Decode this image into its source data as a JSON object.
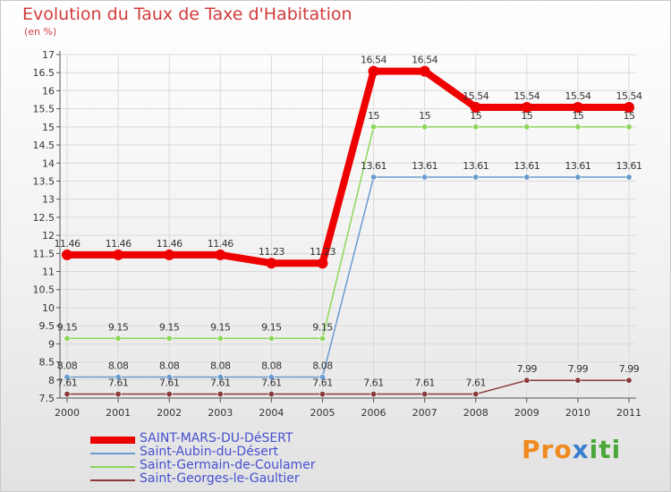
{
  "title": "Evolution du Taux de Taxe d'Habitation",
  "unit": "(en %)",
  "brand": {
    "part1": "Pro",
    "part2": "x",
    "part3": "iti"
  },
  "colors": {
    "title": "#d03b3b",
    "legend_text": "#4650d0",
    "grid": "#d9d9d9",
    "axis": "#555555"
  },
  "chart_data": {
    "type": "line",
    "title": "Evolution du Taux de Taxe d'Habitation",
    "ylabel": "(en %)",
    "xlabel": "",
    "x": [
      "2000",
      "2001",
      "2002",
      "2003",
      "2004",
      "2005",
      "2006",
      "2007",
      "2008",
      "2009",
      "2010",
      "2011"
    ],
    "ylim": [
      7.5,
      17
    ],
    "yticks": [
      "7.5",
      "8",
      "8.5",
      "9",
      "9.5",
      "10",
      "10.5",
      "11",
      "11.5",
      "12",
      "12.5",
      "13",
      "13.5",
      "14",
      "14.5",
      "15",
      "15.5",
      "16",
      "16.5",
      "17"
    ],
    "grid": true,
    "legend_position": "bottom-left",
    "series": [
      {
        "name": "SAINT-MARS-DU-DéSERT",
        "color": "#ee0000",
        "values": [
          11.46,
          11.46,
          11.46,
          11.46,
          11.23,
          11.23,
          16.54,
          16.54,
          15.54,
          15.54,
          15.54,
          15.54
        ],
        "labels": [
          "11.46",
          "11.46",
          "11.46",
          "11.46",
          "11.23",
          "11.23",
          "16.54",
          "16.54",
          "15.54",
          "15.54",
          "15.54",
          "15.54"
        ]
      },
      {
        "name": "Saint-Aubin-du-Désert",
        "color": "#6a9bd0",
        "values": [
          8.08,
          8.08,
          8.08,
          8.08,
          8.08,
          8.08,
          13.61,
          13.61,
          13.61,
          13.61,
          13.61,
          13.61
        ],
        "labels": [
          "8.08",
          "8.08",
          "8.08",
          "8.08",
          "8.08",
          "8.08",
          "13.61",
          "13.61",
          "13.61",
          "13.61",
          "13.61",
          "13.61"
        ]
      },
      {
        "name": "Saint-Germain-de-Coulamer",
        "color": "#8cd65a",
        "values": [
          9.15,
          9.15,
          9.15,
          9.15,
          9.15,
          9.15,
          15,
          15,
          15,
          15,
          15,
          15
        ],
        "labels": [
          "9.15",
          "9.15",
          "9.15",
          "9.15",
          "9.15",
          "9.15",
          "15",
          "15",
          "15",
          "15",
          "15",
          "15"
        ]
      },
      {
        "name": "Saint-Georges-le-Gaultier",
        "color": "#8a3a3a",
        "values": [
          7.61,
          7.61,
          7.61,
          7.61,
          7.61,
          7.61,
          7.61,
          7.61,
          7.61,
          7.99,
          7.99,
          7.99
        ],
        "labels": [
          "7.61",
          "7.61",
          "7.61",
          "7.61",
          "7.61",
          "7.61",
          "7.61",
          "7.61",
          "7.61",
          "7.99",
          "7.99",
          "7.99"
        ]
      }
    ]
  }
}
